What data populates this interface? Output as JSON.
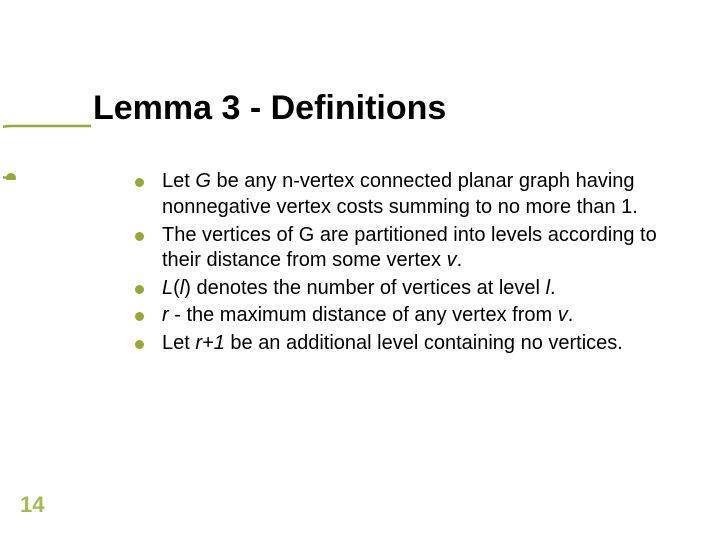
{
  "slide": {
    "title": "Lemma 3 - Definitions",
    "page_number": "14",
    "accent_color": "#9aa831",
    "page_number_color": "#a9b84f",
    "title_fontsize": 34,
    "body_fontsize": 20,
    "bullets": [
      {
        "segments": [
          {
            "text": "Let ",
            "italic": false
          },
          {
            "text": "G",
            "italic": true
          },
          {
            "text": " be any n-vertex connected planar graph having nonnegative vertex costs summing to no more than 1.",
            "italic": false
          }
        ]
      },
      {
        "segments": [
          {
            "text": "The vertices of G are partitioned into levels according to their distance from some vertex ",
            "italic": false
          },
          {
            "text": "v",
            "italic": true
          },
          {
            "text": ".",
            "italic": false
          }
        ]
      },
      {
        "segments": [
          {
            "text": "L",
            "italic": true
          },
          {
            "text": "(",
            "italic": false
          },
          {
            "text": "l",
            "italic": true
          },
          {
            "text": ") denotes the number of vertices at level ",
            "italic": false
          },
          {
            "text": "l",
            "italic": true
          },
          {
            "text": ".",
            "italic": false
          }
        ]
      },
      {
        "segments": [
          {
            "text": "r",
            "italic": true
          },
          {
            "text": " - the maximum distance of any vertex from ",
            "italic": false
          },
          {
            "text": "v",
            "italic": true
          },
          {
            "text": ".",
            "italic": false
          }
        ]
      },
      {
        "segments": [
          {
            "text": "Let ",
            "italic": false
          },
          {
            "text": "r+1",
            "italic": true
          },
          {
            "text": " be an additional level containing no vertices.",
            "italic": false
          }
        ]
      }
    ]
  }
}
